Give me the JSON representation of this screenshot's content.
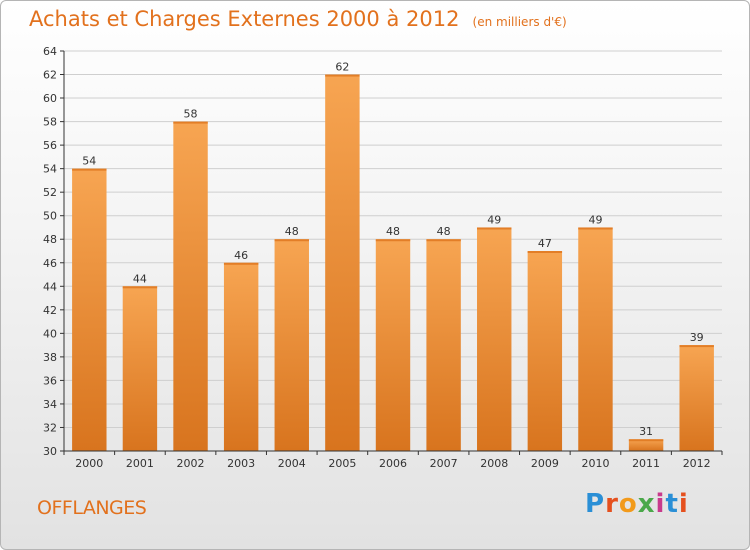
{
  "title": "Achats et Charges Externes 2000 à 2012",
  "unit_label": "(en milliers d'€)",
  "place_name": "OFFLANGES",
  "logo": {
    "text": "Proxiti",
    "letters": [
      "P",
      "r",
      "o",
      "x",
      "i",
      "t",
      "i"
    ]
  },
  "colors": {
    "bar_light": "#f7a552",
    "bar_dark": "#d8741e",
    "title": "#e2711d",
    "axis": "#333333",
    "grid": "#cfcfcf"
  },
  "chart_data": {
    "type": "bar",
    "categories": [
      "2000",
      "2001",
      "2002",
      "2003",
      "2004",
      "2005",
      "2006",
      "2007",
      "2008",
      "2009",
      "2010",
      "2011",
      "2012"
    ],
    "values": [
      54,
      44,
      58,
      46,
      48,
      62,
      48,
      48,
      49,
      47,
      49,
      31,
      39
    ],
    "ylim": [
      30,
      64
    ],
    "yticks": [
      30,
      32,
      34,
      36,
      38,
      40,
      42,
      44,
      46,
      48,
      50,
      52,
      54,
      56,
      58,
      60,
      62,
      64
    ],
    "data_labels": [
      "54",
      "44",
      "58",
      "46",
      "48",
      "62",
      "48",
      "48",
      "49",
      "47",
      "49",
      "31",
      "39"
    ],
    "grid": true,
    "legend": "none"
  }
}
